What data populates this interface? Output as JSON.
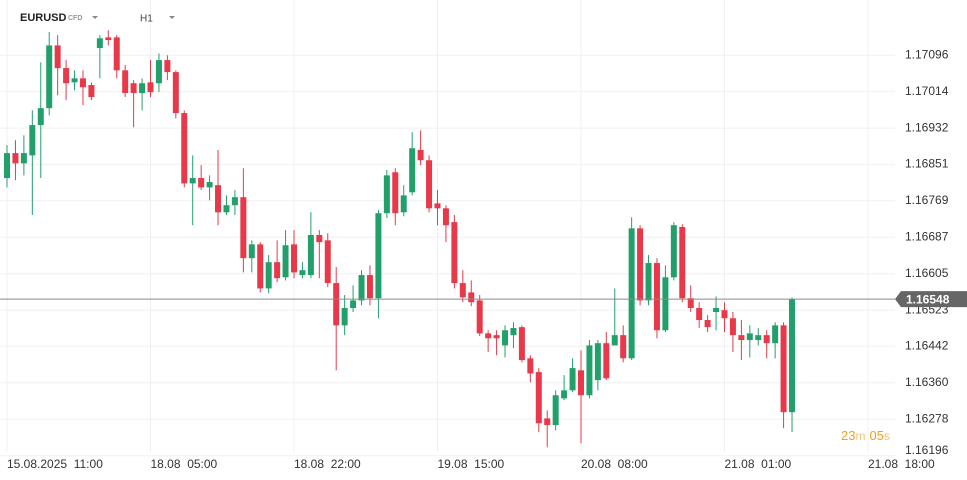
{
  "chart_data": {
    "type": "candlestick",
    "symbol": "EURUSD",
    "instrument_kind": "CFD",
    "timeframe": "H1",
    "countdown": [
      "23",
      "m",
      "05",
      "s"
    ],
    "current_price": 1.16548,
    "up_color": "#22a06b",
    "down_color": "#e8394a",
    "grid": true,
    "xlim": [
      -0.83,
      105.2
    ],
    "xticks": [
      {
        "value": 0,
        "label": "15.08.2025  11:00"
      },
      {
        "value": 17,
        "label": "18.08  05:00"
      },
      {
        "value": 34,
        "label": "18.08  22:00"
      },
      {
        "value": 51,
        "label": "19.08  15:00"
      },
      {
        "value": 68,
        "label": "20.08  08:00"
      },
      {
        "value": 85,
        "label": "21.08  01:00"
      },
      {
        "value": 102,
        "label": "21.08  18:00"
      }
    ],
    "ylim": [
      1.16191,
      1.1722
    ],
    "yticks": [
      1.17096,
      1.17014,
      1.16932,
      1.16851,
      1.16769,
      1.16687,
      1.16605,
      1.16523,
      1.16442,
      {
        "value": 1.1636,
        "label": "1.16360"
      },
      1.16278,
      1.16196
    ],
    "open": [
      1.1682,
      1.16876,
      1.16853,
      1.16871,
      1.16939,
      1.16977,
      1.17118,
      1.17067,
      1.17035,
      1.17044,
      1.17029,
      1.17112,
      1.17136,
      1.17136,
      1.17062,
      1.17033,
      1.17011,
      1.17035,
      1.17033,
      1.17085,
      1.17058,
      1.16966,
      1.16808,
      1.1682,
      1.16799,
      1.16804,
      1.16743,
      1.16759,
      1.16777,
      1.1664,
      1.16671,
      1.16572,
      1.16631,
      1.16597,
      1.16671,
      1.16602,
      1.16602,
      1.16692,
      1.1668,
      1.16584,
      1.16489,
      1.16528,
      1.16545,
      1.16602,
      1.1655,
      1.16741,
      1.16833,
      1.16743,
      1.16788,
      1.16883,
      1.1686,
      1.16763,
      1.16752,
      1.16721,
      1.16584,
      1.16563,
      1.16545,
      1.16471,
      1.16467,
      1.16444,
      1.16467,
      1.16485,
      1.16415,
      1.16384,
      1.1628,
      1.16265,
      1.16325,
      1.16343,
      1.16388,
      1.16332,
      1.16366,
      1.16449,
      1.16444,
      1.16467,
      1.16415,
      1.16707,
      1.16545,
      1.16629,
      1.16478,
      1.16597,
      1.1671,
      1.1655,
      1.16528,
      1.16501,
      1.16519,
      1.16523,
      1.16505,
      1.16467,
      1.16456,
      1.16456,
      1.16467,
      1.16449,
      1.16489,
      1.16294
    ],
    "high": [
      1.16894,
      1.16905,
      1.16916,
      1.16972,
      1.1708,
      1.17148,
      1.17141,
      1.17085,
      1.17062,
      1.17062,
      1.17035,
      1.17141,
      1.17152,
      1.17141,
      1.17074,
      1.1704,
      1.17044,
      1.17085,
      1.171,
      1.17096,
      1.17062,
      1.16972,
      1.16871,
      1.16849,
      1.16826,
      1.16883,
      1.16781,
      1.16793,
      1.16842,
      1.1668,
      1.16676,
      1.16647,
      1.1668,
      1.16703,
      1.16703,
      1.16631,
      1.16743,
      1.16703,
      1.16696,
      1.1662,
      1.16557,
      1.16579,
      1.16613,
      1.16624,
      1.16748,
      1.16838,
      1.16842,
      1.16804,
      1.16923,
      1.16927,
      1.16871,
      1.16793,
      1.16759,
      1.16737,
      1.16613,
      1.1659,
      1.16557,
      1.16478,
      1.16478,
      1.16489,
      1.16496,
      1.16489,
      1.16422,
      1.16393,
      1.16298,
      1.16343,
      1.16377,
      1.16415,
      1.16433,
      1.16456,
      1.16456,
      1.16474,
      1.16572,
      1.16489,
      1.16732,
      1.16714,
      1.16647,
      1.1664,
      1.16624,
      1.16721,
      1.16716,
      1.16579,
      1.16541,
      1.16512,
      1.16554,
      1.16541,
      1.16519,
      1.16501,
      1.16489,
      1.16483,
      1.16478,
      1.16496,
      1.16496,
      1.16552
    ],
    "low": [
      1.16799,
      1.16815,
      1.16826,
      1.16737,
      1.1682,
      1.16961,
      1.17006,
      1.16995,
      1.17017,
      1.16984,
      1.16995,
      1.17044,
      1.17118,
      1.17044,
      1.17002,
      1.16934,
      1.16972,
      1.17002,
      1.17013,
      1.1704,
      1.16954,
      1.16799,
      1.16714,
      1.16793,
      1.1677,
      1.16714,
      1.16737,
      1.16737,
      1.16608,
      1.16608,
      1.16563,
      1.16561,
      1.16586,
      1.1659,
      1.16595,
      1.16595,
      1.16595,
      1.16595,
      1.16575,
      1.16388,
      1.16467,
      1.16519,
      1.16534,
      1.16534,
      1.16505,
      1.1673,
      1.16714,
      1.16734,
      1.16781,
      1.16849,
      1.16743,
      1.16714,
      1.16676,
      1.16572,
      1.16541,
      1.16532,
      1.16465,
      1.16429,
      1.16422,
      1.16417,
      1.16438,
      1.16406,
      1.16361,
      1.16249,
      1.16215,
      1.16253,
      1.16321,
      1.16339,
      1.16224,
      1.16325,
      1.16343,
      1.16366,
      1.16444,
      1.16406,
      1.16411,
      1.16534,
      1.16534,
      1.1646,
      1.16474,
      1.1659,
      1.16541,
      1.16519,
      1.16483,
      1.16474,
      1.16478,
      1.16474,
      1.16429,
      1.16411,
      1.16417,
      1.16444,
      1.16415,
      1.16415,
      1.16258,
      1.16249
    ],
    "close": [
      1.16876,
      1.16853,
      1.16876,
      1.16939,
      1.16977,
      1.17118,
      1.17067,
      1.17033,
      1.17044,
      1.17024,
      1.17002,
      1.17134,
      1.1713,
      1.17062,
      1.17011,
      1.17011,
      1.17033,
      1.17013,
      1.17085,
      1.17058,
      1.16966,
      1.16808,
      1.1682,
      1.16799,
      1.16811,
      1.16743,
      1.16759,
      1.16777,
      1.1664,
      1.16671,
      1.16572,
      1.16631,
      1.16595,
      1.16669,
      1.16608,
      1.16613,
      1.16692,
      1.16676,
      1.16584,
      1.16489,
      1.16528,
      1.16545,
      1.16602,
      1.1655,
      1.16741,
      1.16826,
      1.16741,
      1.16781,
      1.16887,
      1.1686,
      1.16752,
      1.16752,
      1.16714,
      1.16584,
      1.16552,
      1.16541,
      1.16471,
      1.1646,
      1.1646,
      1.16478,
      1.16483,
      1.16411,
      1.16381,
      1.16269,
      1.16265,
      1.16332,
      1.16343,
      1.16393,
      1.16332,
      1.16444,
      1.16449,
      1.1637,
      1.16467,
      1.16415,
      1.16707,
      1.16545,
      1.16629,
      1.16478,
      1.16597,
      1.16714,
      1.1655,
      1.16528,
      1.16501,
      1.16485,
      1.16528,
      1.16505,
      1.16467,
      1.16456,
      1.16471,
      1.16467,
      1.16449,
      1.16489,
      1.16294,
      1.16548
    ]
  }
}
